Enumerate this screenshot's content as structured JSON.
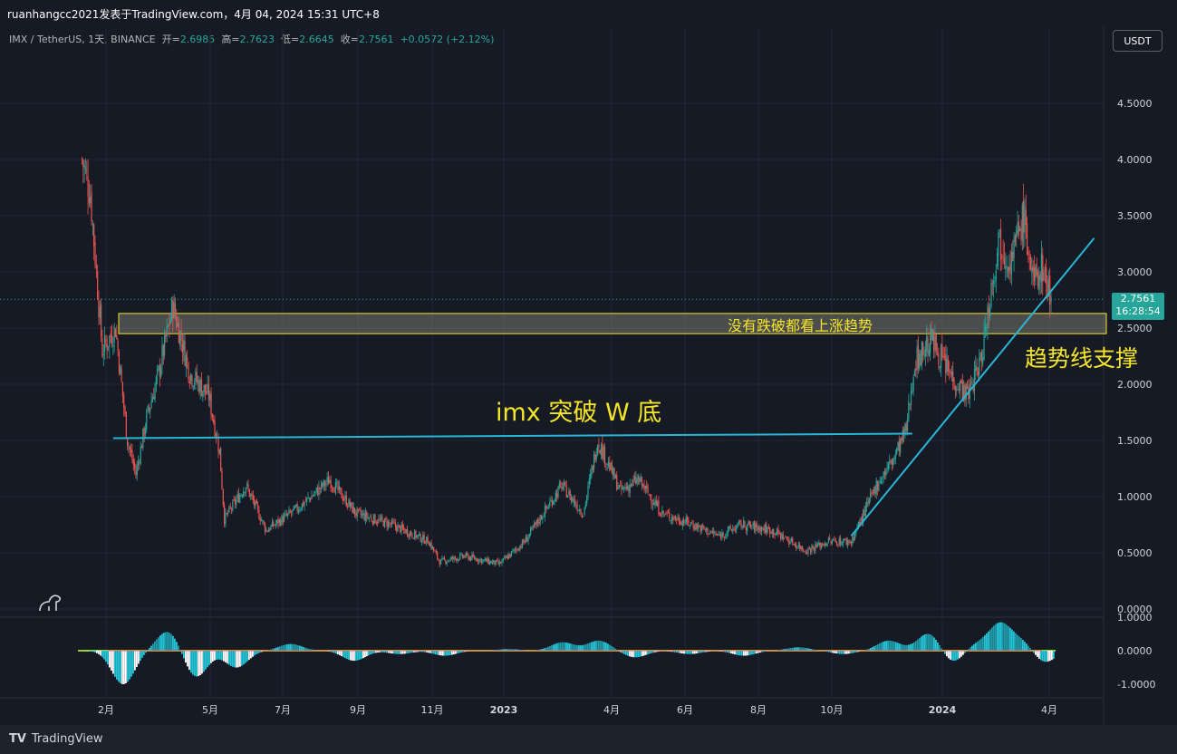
{
  "header": {
    "publisher": "ruanhangcc2021发表于TradingView.com，4月 04, 2024 15:31 UTC+8",
    "symbol": "IMX / TetherUS, 1天, BINANCE",
    "open_label": "开=",
    "open": "2.6985",
    "high_label": "高=",
    "high": "2.7623",
    "low_label": "低=",
    "low": "2.6645",
    "close_label": "收=",
    "close": "2.7561",
    "change": "+0.0572 (+2.12%)",
    "currency": "USDT"
  },
  "price_marker": {
    "price": "2.7561",
    "countdown": "16:28:54"
  },
  "annotations": {
    "zone_label": "没有跌破都看上涨趋势",
    "neckline_label": "imx 突破 W 底",
    "trendline_label": "趋势线支撑"
  },
  "footer": {
    "brand": "TradingView",
    "logo_text": "TV"
  },
  "colors": {
    "up": "#26a69a",
    "down": "#ef5350",
    "line": "#29b6d6",
    "annotation": "#f5e52a",
    "zone": "#f5e52a"
  },
  "chart_data": {
    "type": "candlestick",
    "title": "IMX / TetherUS, 1天, BINANCE",
    "price_axis": {
      "range": [
        0,
        4.8
      ],
      "ticks": [
        "4.5000",
        "4.0000",
        "3.5000",
        "3.0000",
        "2.5000",
        "2.0000",
        "1.5000",
        "1.0000",
        "0.5000",
        "0.0000"
      ]
    },
    "time_axis": [
      "2月",
      "5月",
      "7月",
      "9月",
      "11月",
      "2023",
      "4月",
      "6月",
      "8月",
      "10月",
      "2024",
      "4月"
    ],
    "approx_close_path": [
      {
        "d": "2022-01-15",
        "p": 4.0
      },
      {
        "d": "2022-01-22",
        "p": 3.7
      },
      {
        "d": "2022-02-01",
        "p": 2.3
      },
      {
        "d": "2022-02-12",
        "p": 2.5
      },
      {
        "d": "2022-02-22",
        "p": 1.5
      },
      {
        "d": "2022-03-01",
        "p": 1.2
      },
      {
        "d": "2022-03-10",
        "p": 1.7
      },
      {
        "d": "2022-03-20",
        "p": 2.1
      },
      {
        "d": "2022-04-01",
        "p": 2.7
      },
      {
        "d": "2022-04-15",
        "p": 2.1
      },
      {
        "d": "2022-05-01",
        "p": 1.9
      },
      {
        "d": "2022-05-10",
        "p": 1.4
      },
      {
        "d": "2022-05-14",
        "p": 0.8
      },
      {
        "d": "2022-06-01",
        "p": 1.1
      },
      {
        "d": "2022-06-18",
        "p": 0.7
      },
      {
        "d": "2022-07-15",
        "p": 0.9
      },
      {
        "d": "2022-08-10",
        "p": 1.15
      },
      {
        "d": "2022-09-01",
        "p": 0.85
      },
      {
        "d": "2022-10-01",
        "p": 0.75
      },
      {
        "d": "2022-11-01",
        "p": 0.6
      },
      {
        "d": "2022-11-10",
        "p": 0.42
      },
      {
        "d": "2022-12-01",
        "p": 0.47
      },
      {
        "d": "2022-12-30",
        "p": 0.4
      },
      {
        "d": "2023-01-20",
        "p": 0.6
      },
      {
        "d": "2023-02-20",
        "p": 1.1
      },
      {
        "d": "2023-03-10",
        "p": 0.85
      },
      {
        "d": "2023-03-22",
        "p": 1.5
      },
      {
        "d": "2023-04-10",
        "p": 1.05
      },
      {
        "d": "2023-04-25",
        "p": 1.15
      },
      {
        "d": "2023-05-15",
        "p": 0.85
      },
      {
        "d": "2023-06-10",
        "p": 0.75
      },
      {
        "d": "2023-07-01",
        "p": 0.65
      },
      {
        "d": "2023-07-20",
        "p": 0.75
      },
      {
        "d": "2023-08-15",
        "p": 0.7
      },
      {
        "d": "2023-09-12",
        "p": 0.52
      },
      {
        "d": "2023-10-01",
        "p": 0.6
      },
      {
        "d": "2023-10-20",
        "p": 0.6
      },
      {
        "d": "2023-11-10",
        "p": 1.1
      },
      {
        "d": "2023-11-25",
        "p": 1.35
      },
      {
        "d": "2023-12-05",
        "p": 1.6
      },
      {
        "d": "2023-12-12",
        "p": 2.2
      },
      {
        "d": "2023-12-26",
        "p": 2.4
      },
      {
        "d": "2024-01-10",
        "p": 2.1
      },
      {
        "d": "2024-01-25",
        "p": 1.9
      },
      {
        "d": "2024-02-05",
        "p": 2.2
      },
      {
        "d": "2024-02-20",
        "p": 3.3
      },
      {
        "d": "2024-03-01",
        "p": 3.1
      },
      {
        "d": "2024-03-12",
        "p": 3.5
      },
      {
        "d": "2024-03-20",
        "p": 2.9
      },
      {
        "d": "2024-03-28",
        "p": 3.05
      },
      {
        "d": "2024-04-04",
        "p": 2.7561
      }
    ],
    "support_zone": {
      "from": 2.45,
      "to": 2.63
    },
    "neckline": {
      "start": {
        "d": "2022-02-10",
        "p": 1.52
      },
      "end": {
        "d": "2023-12-10",
        "p": 1.56
      }
    },
    "trendline": {
      "start": {
        "d": "2023-10-20",
        "p": 0.65
      },
      "end": {
        "d": "2024-05-10",
        "p": 3.3
      }
    },
    "oscillator": {
      "ticks": [
        "1.0000",
        "0.0000",
        "-1.0000"
      ],
      "range": [
        -1.1,
        1.1
      ]
    }
  }
}
